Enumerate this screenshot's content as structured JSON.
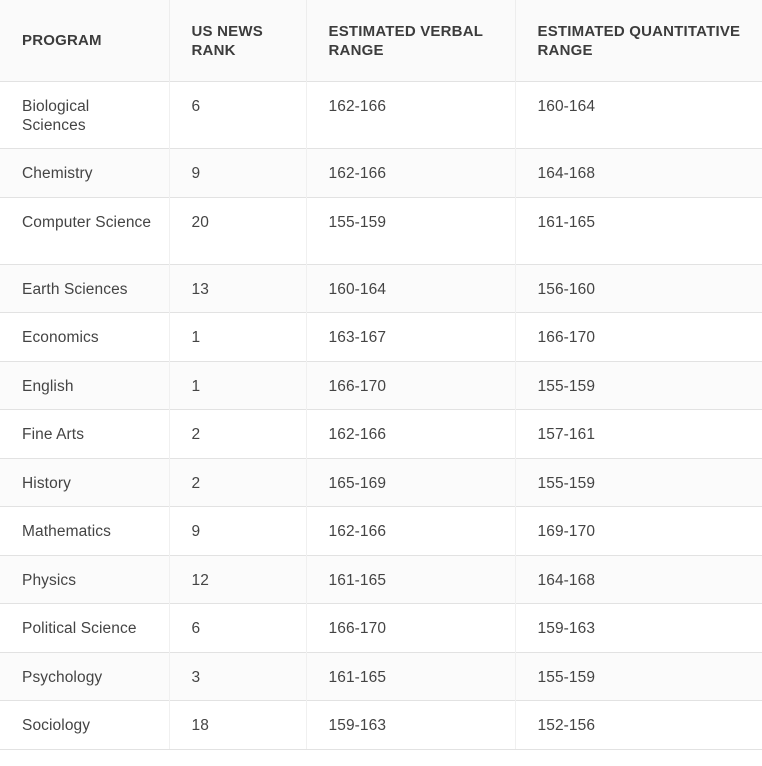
{
  "table": {
    "headers": [
      "PROGRAM",
      "US NEWS RANK",
      "ESTIMATED VERBAL RANGE",
      "ESTIMATED QUANTITATIVE RANGE"
    ],
    "rows": [
      {
        "program": "Biological Sciences",
        "rank": "6",
        "verbal": "162-166",
        "quant": "160-164"
      },
      {
        "program": "Chemistry",
        "rank": "9",
        "verbal": "162-166",
        "quant": "164-168"
      },
      {
        "program": "Computer Science",
        "rank": "20",
        "verbal": "155-159",
        "quant": "161-165"
      },
      {
        "program": "Earth Sciences",
        "rank": "13",
        "verbal": "160-164",
        "quant": "156-160"
      },
      {
        "program": "Economics",
        "rank": "1",
        "verbal": "163-167",
        "quant": "166-170"
      },
      {
        "program": "English",
        "rank": "1",
        "verbal": "166-170",
        "quant": "155-159"
      },
      {
        "program": "Fine Arts",
        "rank": "2",
        "verbal": "162-166",
        "quant": "157-161"
      },
      {
        "program": "History",
        "rank": "2",
        "verbal": "165-169",
        "quant": "155-159"
      },
      {
        "program": "Mathematics",
        "rank": "9",
        "verbal": "162-166",
        "quant": "169-170"
      },
      {
        "program": "Physics",
        "rank": "12",
        "verbal": "161-165",
        "quant": "164-168"
      },
      {
        "program": "Political Science",
        "rank": "6",
        "verbal": "166-170",
        "quant": "159-163"
      },
      {
        "program": "Psychology",
        "rank": "3",
        "verbal": "161-165",
        "quant": "155-159"
      },
      {
        "program": "Sociology",
        "rank": "18",
        "verbal": "159-163",
        "quant": "152-156"
      }
    ]
  }
}
